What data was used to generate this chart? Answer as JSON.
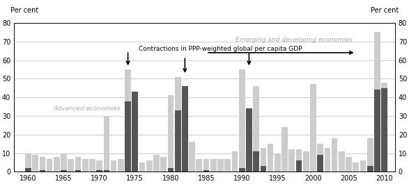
{
  "years": [
    1960,
    1961,
    1962,
    1963,
    1964,
    1965,
    1966,
    1967,
    1968,
    1969,
    1970,
    1971,
    1972,
    1973,
    1974,
    1975,
    1976,
    1977,
    1978,
    1979,
    1980,
    1981,
    1982,
    1983,
    1984,
    1985,
    1986,
    1987,
    1988,
    1989,
    1990,
    1991,
    1992,
    1993,
    1994,
    1995,
    1996,
    1997,
    1998,
    1999,
    2000,
    2001,
    2002,
    2003,
    2004,
    2005,
    2006,
    2007,
    2008,
    2009,
    2010
  ],
  "advanced": [
    2,
    0,
    1,
    0,
    0,
    1,
    0,
    1,
    0,
    0,
    1,
    1,
    0,
    0,
    38,
    43,
    0,
    0,
    0,
    0,
    2,
    33,
    46,
    0,
    0,
    1,
    0,
    0,
    0,
    0,
    2,
    34,
    11,
    3,
    0,
    0,
    0,
    0,
    6,
    0,
    0,
    9,
    0,
    0,
    0,
    0,
    0,
    0,
    3,
    44,
    45
  ],
  "emerging": [
    10,
    9,
    8,
    7,
    8,
    10,
    7,
    8,
    7,
    7,
    6,
    30,
    6,
    7,
    55,
    42,
    5,
    6,
    9,
    8,
    41,
    51,
    34,
    16,
    7,
    7,
    7,
    7,
    7,
    11,
    55,
    26,
    46,
    13,
    15,
    10,
    24,
    12,
    12,
    11,
    47,
    15,
    13,
    18,
    11,
    8,
    5,
    6,
    18,
    75,
    48
  ],
  "advanced_color": "#555555",
  "emerging_color": "#cccccc",
  "arrow_years": [
    1974,
    1982,
    1991
  ],
  "annotation_text": "Contractions in PPP-weighted global per capita GDP",
  "label_advanced": "Advanced economies",
  "label_emerging": "Emerging and developing economies",
  "ylim": [
    0,
    80
  ],
  "yticks": [
    0,
    10,
    20,
    30,
    40,
    50,
    60,
    70,
    80
  ],
  "xticks": [
    1960,
    1965,
    1970,
    1975,
    1980,
    1985,
    1990,
    1995,
    2000,
    2005,
    2010
  ],
  "ylabel_text": "Per cent",
  "background_color": "#ffffff",
  "bar_width": 0.85,
  "xlim_left": 1958.0,
  "xlim_right": 2011.5
}
